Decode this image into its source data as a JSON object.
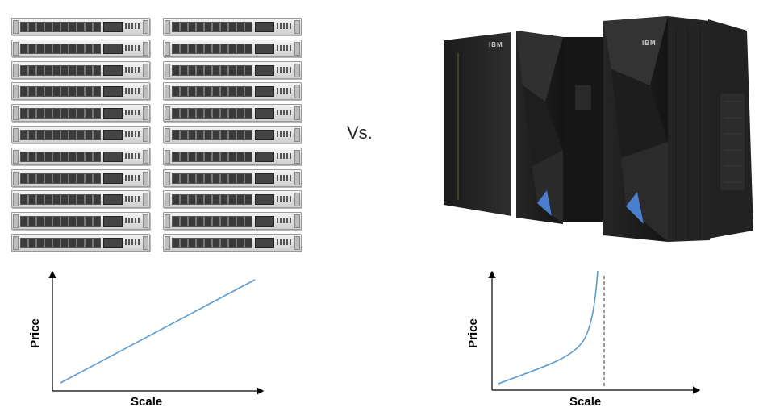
{
  "comparison_label": "Vs.",
  "mainframe": {
    "brand_left": "IBM",
    "brand_right": "IBM"
  },
  "left_chart": {
    "xlabel": "Scale",
    "ylabel": "Price"
  },
  "right_chart": {
    "xlabel": "Scale",
    "ylabel": "Price"
  },
  "colors": {
    "curve": "#5b9bd5",
    "axis": "#000000",
    "limit_line": "#333333"
  }
}
